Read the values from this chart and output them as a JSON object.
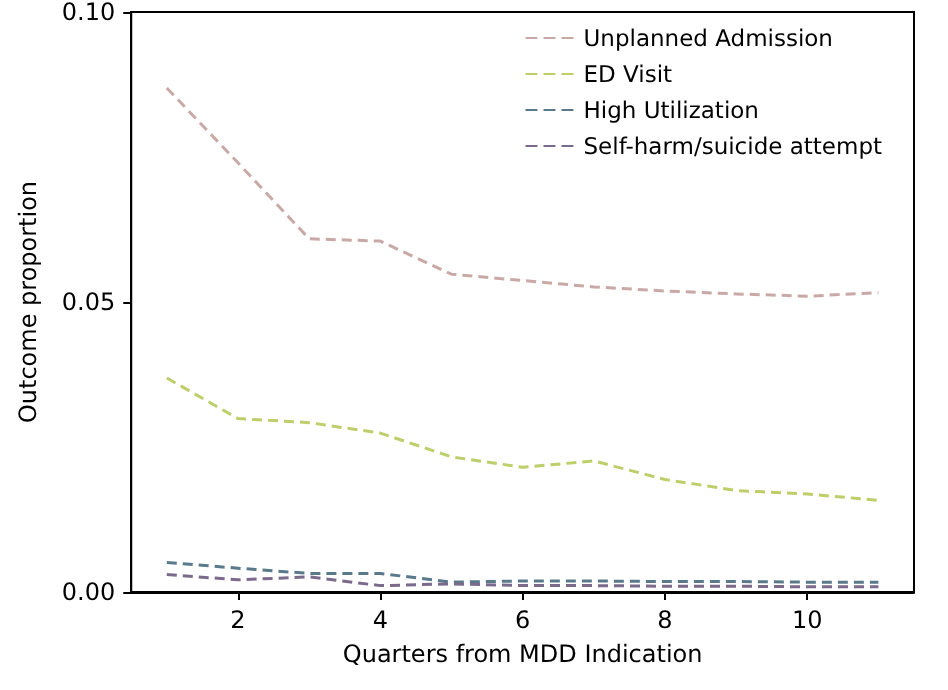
{
  "chart_data": {
    "type": "line",
    "xlabel": "Quarters from MDD Indication",
    "ylabel": "Outcome proportion",
    "x": [
      1,
      2,
      3,
      4,
      5,
      6,
      7,
      8,
      9,
      10,
      11
    ],
    "series": [
      {
        "name": "Unplanned Admission",
        "color": "#c9a9a6",
        "values": [
          0.0869,
          0.074,
          0.0609,
          0.0605,
          0.0548,
          0.0537,
          0.0526,
          0.0519,
          0.0514,
          0.051,
          0.0516
        ]
      },
      {
        "name": "ED Visit",
        "color": "#bccf6a",
        "values": [
          0.0369,
          0.0299,
          0.0292,
          0.0274,
          0.0233,
          0.0215,
          0.0226,
          0.0194,
          0.0175,
          0.0169,
          0.0158
        ]
      },
      {
        "name": "High Utilization",
        "color": "#5a7a8c",
        "values": [
          0.0051,
          0.0041,
          0.0032,
          0.0032,
          0.0017,
          0.0019,
          0.0019,
          0.0018,
          0.0018,
          0.0017,
          0.0017
        ]
      },
      {
        "name": "Self-harm/suicide attempt",
        "color": "#7a6a8c",
        "values": [
          0.003,
          0.0021,
          0.0026,
          0.0011,
          0.0014,
          0.0011,
          0.0011,
          0.001,
          0.001,
          0.0009,
          0.0009
        ]
      }
    ],
    "xlim": [
      0.5,
      11.5
    ],
    "xticks": [
      2,
      4,
      6,
      8,
      10
    ],
    "ylim": [
      0,
      0.1
    ],
    "yticks": [
      {
        "value": 0,
        "label": "0.00"
      },
      {
        "value": 0.05,
        "label": "0.05"
      },
      {
        "value": 0.1,
        "label": "0.10"
      }
    ],
    "grid": false,
    "legend": "top right",
    "marker": "none",
    "line_style": "dashed"
  }
}
